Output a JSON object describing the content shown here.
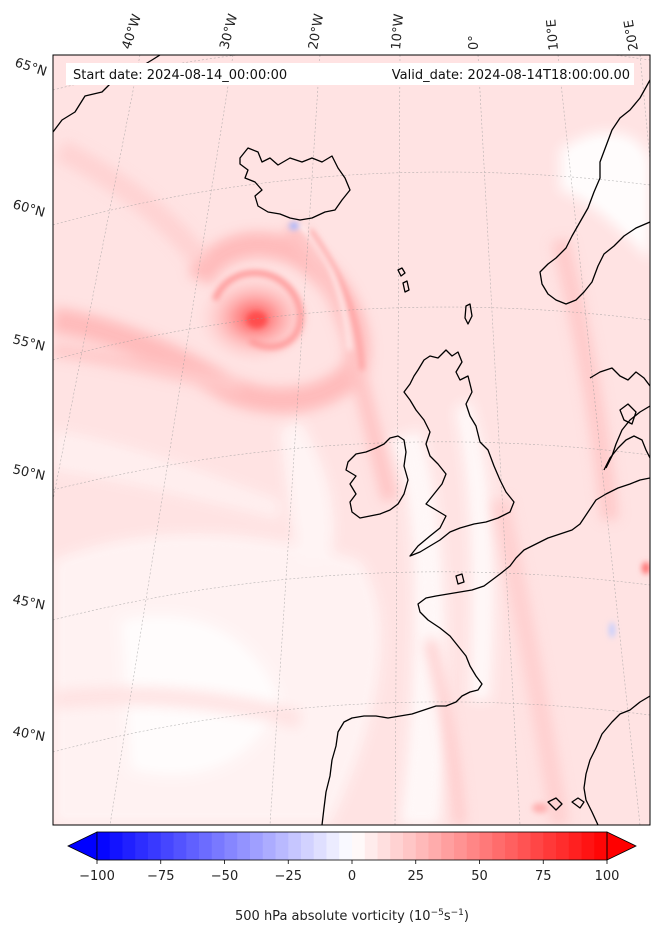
{
  "header": {
    "start_date": "Start date: 2024-08-14_00:00:00",
    "valid_date": "Valid_date: 2024-08-14T18:00:00.00"
  },
  "map": {
    "projection": "lambert-conformal",
    "variable": "500 hPa absolute vorticity",
    "lon_labels": [
      "40°W",
      "30°W",
      "20°W",
      "10°W",
      "0°",
      "10°E",
      "20°E"
    ],
    "lat_labels": [
      "65°N",
      "60°N",
      "55°N",
      "50°N",
      "45°N",
      "40°N"
    ],
    "coastline_color": "#000000",
    "gridline_style": "dotted-grey"
  },
  "colorbar": {
    "cmap": "bwr",
    "min": -100,
    "max": 100,
    "extend": "both",
    "ticks": [
      "−100",
      "−75",
      "−50",
      "−25",
      "0",
      "25",
      "50",
      "75",
      "100"
    ],
    "label_main": "500 hPa absolute vorticity (10",
    "label_exp1": "−5",
    "label_mid": "s",
    "label_exp2": "−1",
    "label_end": ")",
    "color_low": "#0000ff",
    "color_mid": "#ffffff",
    "color_high": "#ff0000"
  }
}
